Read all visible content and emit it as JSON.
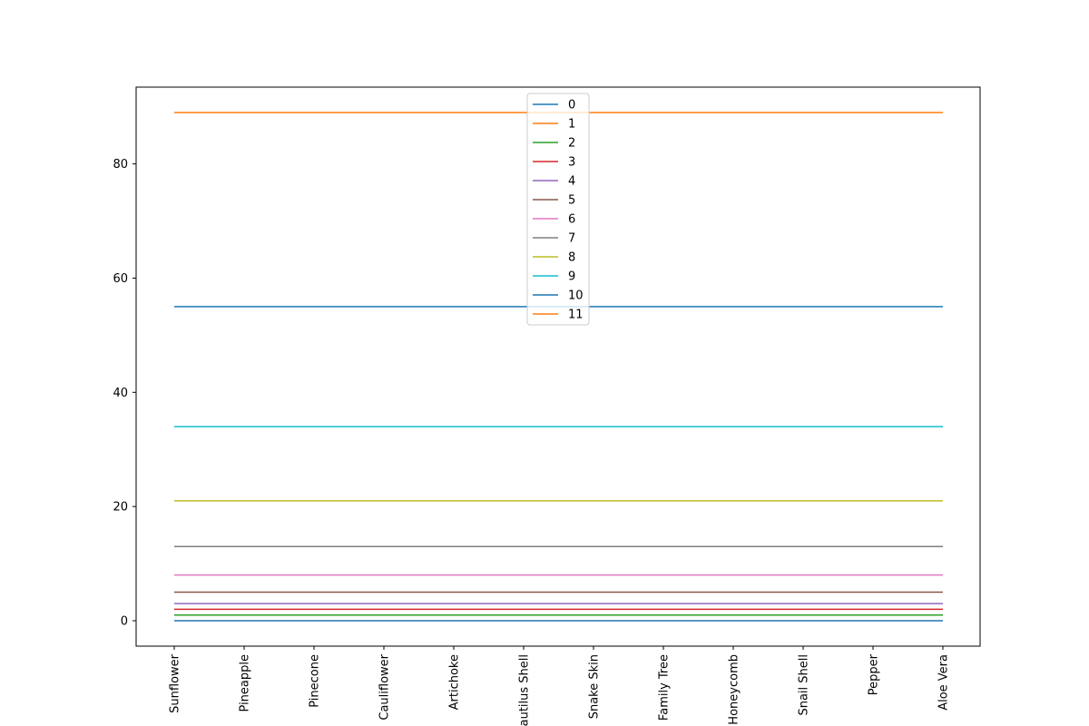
{
  "chart_data": {
    "type": "line",
    "title": "",
    "xlabel": "",
    "ylabel": "",
    "categories": [
      "Sunflower",
      "Pineapple",
      "Pinecone",
      "Cauliflower",
      "Artichoke",
      "Nautilus Shell",
      "Snake Skin",
      "Family Tree",
      "Honeycomb",
      "Snail Shell",
      "Pepper",
      "Aloe Vera"
    ],
    "ylim": [
      -4.45,
      93.45
    ],
    "yticks": [
      0,
      20,
      40,
      60,
      80
    ],
    "grid": false,
    "legend_position": "top-center",
    "series": [
      {
        "name": "0",
        "color": "#1f77b4",
        "values": [
          0,
          0,
          0,
          0,
          0,
          0,
          0,
          0,
          0,
          0,
          0,
          0
        ]
      },
      {
        "name": "1",
        "color": "#ff7f0e",
        "values": [
          1,
          1,
          1,
          1,
          1,
          1,
          1,
          1,
          1,
          1,
          1,
          1
        ]
      },
      {
        "name": "2",
        "color": "#2ca02c",
        "values": [
          1,
          1,
          1,
          1,
          1,
          1,
          1,
          1,
          1,
          1,
          1,
          1
        ]
      },
      {
        "name": "3",
        "color": "#d62728",
        "values": [
          2,
          2,
          2,
          2,
          2,
          2,
          2,
          2,
          2,
          2,
          2,
          2
        ]
      },
      {
        "name": "4",
        "color": "#9467bd",
        "values": [
          3,
          3,
          3,
          3,
          3,
          3,
          3,
          3,
          3,
          3,
          3,
          3
        ]
      },
      {
        "name": "5",
        "color": "#8c564b",
        "values": [
          5,
          5,
          5,
          5,
          5,
          5,
          5,
          5,
          5,
          5,
          5,
          5
        ]
      },
      {
        "name": "6",
        "color": "#e377c2",
        "values": [
          8,
          8,
          8,
          8,
          8,
          8,
          8,
          8,
          8,
          8,
          8,
          8
        ]
      },
      {
        "name": "7",
        "color": "#7f7f7f",
        "values": [
          13,
          13,
          13,
          13,
          13,
          13,
          13,
          13,
          13,
          13,
          13,
          13
        ]
      },
      {
        "name": "8",
        "color": "#bcbd22",
        "values": [
          21,
          21,
          21,
          21,
          21,
          21,
          21,
          21,
          21,
          21,
          21,
          21
        ]
      },
      {
        "name": "9",
        "color": "#17becf",
        "values": [
          34,
          34,
          34,
          34,
          34,
          34,
          34,
          34,
          34,
          34,
          34,
          34
        ]
      },
      {
        "name": "10",
        "color": "#1f77b4",
        "values": [
          55,
          55,
          55,
          55,
          55,
          55,
          55,
          55,
          55,
          55,
          55,
          55
        ]
      },
      {
        "name": "11",
        "color": "#ff7f0e",
        "values": [
          89,
          89,
          89,
          89,
          89,
          89,
          89,
          89,
          89,
          89,
          89,
          89
        ]
      }
    ]
  }
}
